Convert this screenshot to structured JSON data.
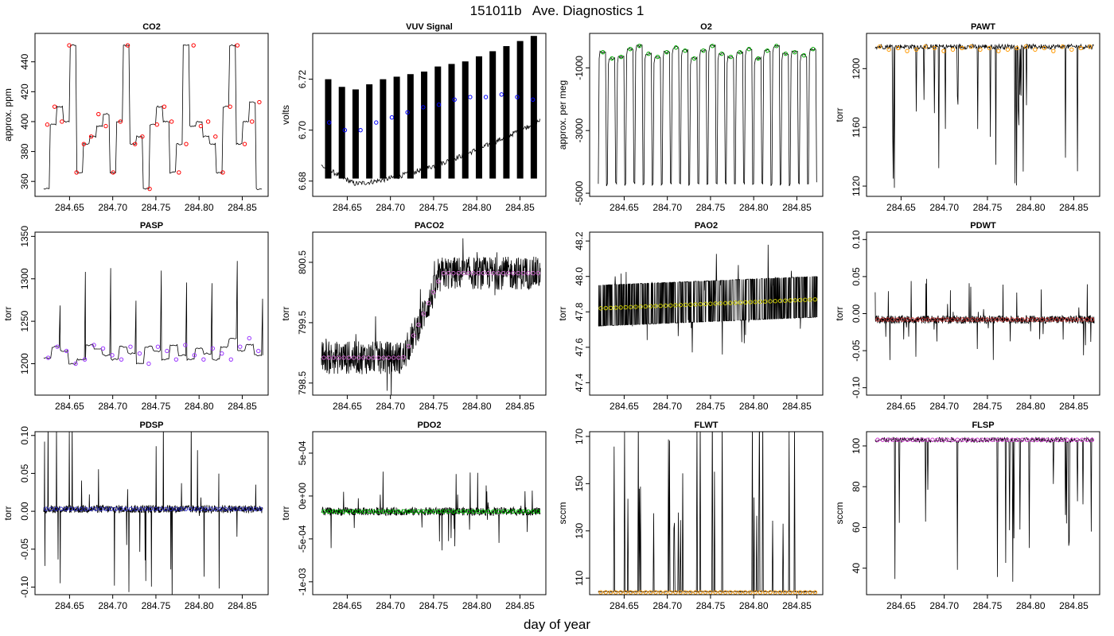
{
  "figure": {
    "title": "151011b   Ave. Diagnostics 1",
    "xlabel": "day of year"
  },
  "chart_data": [
    {
      "id": "co2",
      "type": "line",
      "title": "CO2",
      "ylabel": "approx. ppm",
      "marker_color": "#ff0000",
      "xlim": [
        284.61,
        284.88
      ],
      "ylim": [
        350,
        459
      ],
      "xticks": [
        {
          "v": 284.65,
          "t": "284.65"
        },
        {
          "v": 284.7,
          "t": "284.70"
        },
        {
          "v": 284.75,
          "t": "284.75"
        },
        {
          "v": 284.8,
          "t": "284.80"
        },
        {
          "v": 284.85,
          "t": "284.85"
        }
      ],
      "yticks": [
        {
          "v": 360,
          "t": "360"
        },
        {
          "v": 380,
          "t": "380"
        },
        {
          "v": 400,
          "t": "400"
        },
        {
          "v": 420,
          "t": "420"
        },
        {
          "v": 440,
          "t": "440"
        }
      ],
      "levels": [
        355,
        398,
        410,
        400,
        451,
        366,
        385,
        390,
        397,
        405,
        366,
        400,
        451,
        385,
        390,
        355,
        398,
        410,
        400,
        366,
        385,
        451,
        397,
        400,
        390,
        385,
        366,
        410,
        451,
        385,
        400,
        413,
        355
      ],
      "points": [
        398,
        410,
        400,
        451,
        366,
        385,
        390,
        405,
        397,
        366,
        400,
        451,
        385,
        390,
        355,
        398,
        410,
        400,
        366,
        385,
        451,
        397,
        400,
        390,
        366,
        410,
        451,
        385,
        400,
        413
      ]
    },
    {
      "id": "vuv",
      "type": "line",
      "title": "VUV Signal",
      "ylabel": "volts",
      "marker_color": "#0000ff",
      "xlim": [
        284.61,
        284.88
      ],
      "ylim": [
        6.674,
        6.738
      ],
      "xticks": [
        {
          "v": 284.65,
          "t": "284.65"
        },
        {
          "v": 284.7,
          "t": "284.70"
        },
        {
          "v": 284.75,
          "t": "284.75"
        },
        {
          "v": 284.8,
          "t": "284.80"
        },
        {
          "v": 284.85,
          "t": "284.85"
        }
      ],
      "yticks": [
        {
          "v": 6.68,
          "t": "6.68"
        },
        {
          "v": 6.7,
          "t": "6.70"
        },
        {
          "v": 6.72,
          "t": "6.72"
        }
      ],
      "base_start": 6.686,
      "base_min": 6.679,
      "base_end": 6.704,
      "spikes": [
        6.72,
        6.717,
        6.716,
        6.718,
        6.72,
        6.721,
        6.722,
        6.723,
        6.725,
        6.726,
        6.727,
        6.729,
        6.731,
        6.733,
        6.735,
        6.737
      ],
      "points": [
        6.703,
        6.7,
        6.7,
        6.703,
        6.705,
        6.707,
        6.709,
        6.71,
        6.712,
        6.713,
        6.713,
        6.714,
        6.713,
        6.712
      ]
    },
    {
      "id": "o2",
      "type": "line",
      "title": "O2",
      "ylabel": "approx. per meg",
      "marker_color": "#00aa00",
      "xlim": [
        284.61,
        284.88
      ],
      "ylim": [
        -5100,
        100
      ],
      "xticks": [
        {
          "v": 284.65,
          "t": "284.65"
        },
        {
          "v": 284.7,
          "t": "284.70"
        },
        {
          "v": 284.75,
          "t": "284.75"
        },
        {
          "v": 284.8,
          "t": "284.80"
        },
        {
          "v": 284.85,
          "t": "284.85"
        }
      ],
      "yticks": [
        {
          "v": -5000,
          "t": "-5000"
        },
        {
          "v": -3000,
          "t": "-3000"
        },
        {
          "v": -1000,
          "t": "-1000"
        }
      ],
      "levels": [
        -500,
        -700,
        -650,
        -400,
        -300,
        -550,
        -650,
        -500,
        -350,
        -450,
        -700,
        -450,
        -300,
        -550,
        -650,
        -500,
        -400,
        -700,
        -450,
        -300,
        -550,
        -500,
        -600,
        -400
      ],
      "low": -4700,
      "points": [
        -500,
        -700,
        -650,
        -400,
        -300,
        -550,
        -650,
        -500,
        -350,
        -450,
        -700,
        -450,
        -300,
        -550,
        -650,
        -500,
        -400,
        -700,
        -450,
        -300,
        -550,
        -500,
        -600,
        -400
      ]
    },
    {
      "id": "pawt",
      "type": "line",
      "title": "PAWT",
      "ylabel": "torr",
      "marker_color": "#ff9900",
      "xlim": [
        284.61,
        284.88
      ],
      "ylim": [
        1113,
        1224
      ],
      "xticks": [
        {
          "v": 284.65,
          "t": "284.65"
        },
        {
          "v": 284.7,
          "t": "284.70"
        },
        {
          "v": 284.75,
          "t": "284.75"
        },
        {
          "v": 284.8,
          "t": "284.80"
        },
        {
          "v": 284.85,
          "t": "284.85"
        }
      ],
      "yticks": [
        {
          "v": 1120,
          "t": "1120"
        },
        {
          "v": 1160,
          "t": "1160"
        },
        {
          "v": 1200,
          "t": "1200"
        }
      ],
      "base": 1215,
      "low": 1118,
      "points": [
        1215,
        1213,
        1214,
        1212,
        1213,
        1215,
        1214,
        1212,
        1213,
        1214,
        1215,
        1213,
        1214,
        1212,
        1213,
        1214,
        1215,
        1213,
        1214,
        1212,
        1215,
        1213,
        1214,
        1215
      ]
    },
    {
      "id": "pasp",
      "type": "line",
      "title": "PASP",
      "ylabel": "torr",
      "marker_color": "#9933ff",
      "xlim": [
        284.61,
        284.88
      ],
      "ylim": [
        1163,
        1355
      ],
      "xticks": [
        {
          "v": 284.65,
          "t": "284.65"
        },
        {
          "v": 284.7,
          "t": "284.70"
        },
        {
          "v": 284.75,
          "t": "284.75"
        },
        {
          "v": 284.8,
          "t": "284.80"
        },
        {
          "v": 284.85,
          "t": "284.85"
        }
      ],
      "yticks": [
        {
          "v": 1200,
          "t": "1200"
        },
        {
          "v": 1250,
          "t": "1250"
        },
        {
          "v": 1300,
          "t": "1300"
        },
        {
          "v": 1350,
          "t": "1350"
        }
      ],
      "levels": [
        1207,
        1220,
        1215,
        1200,
        1205,
        1222,
        1218,
        1210,
        1205,
        1220,
        1212,
        1200,
        1220,
        1215,
        1205,
        1222,
        1210,
        1205,
        1218,
        1212,
        1205,
        1220,
        1230,
        1215,
        1222,
        1210
      ],
      "points": [
        1207,
        1220,
        1215,
        1200,
        1205,
        1222,
        1218,
        1210,
        1205,
        1220,
        1212,
        1200,
        1220,
        1215,
        1205,
        1222,
        1210,
        1205,
        1218,
        1212,
        1205,
        1220,
        1230,
        1215
      ]
    },
    {
      "id": "paco2",
      "type": "line",
      "title": "PACO2",
      "ylabel": "torr",
      "marker_color": "#cc66cc",
      "xlim": [
        284.61,
        284.88
      ],
      "ylim": [
        798.3,
        801.0
      ],
      "xticks": [
        {
          "v": 284.65,
          "t": "284.65"
        },
        {
          "v": 284.7,
          "t": "284.70"
        },
        {
          "v": 284.75,
          "t": "284.75"
        },
        {
          "v": 284.8,
          "t": "284.80"
        },
        {
          "v": 284.85,
          "t": "284.85"
        }
      ],
      "yticks": [
        {
          "v": 798.5,
          "t": "798.5"
        },
        {
          "v": 799.5,
          "t": "799.5"
        },
        {
          "v": 800.5,
          "t": "800.5"
        }
      ],
      "low_level": 798.92,
      "high_level": 800.32,
      "step_start": 284.715,
      "step_end": 284.76
    },
    {
      "id": "pao2",
      "type": "line",
      "title": "PAO2",
      "ylabel": "torr",
      "marker_color": "#cccc00",
      "xlim": [
        284.61,
        284.88
      ],
      "ylim": [
        47.33,
        48.25
      ],
      "xticks": [
        {
          "v": 284.65,
          "t": "284.65"
        },
        {
          "v": 284.7,
          "t": "284.70"
        },
        {
          "v": 284.75,
          "t": "284.75"
        },
        {
          "v": 284.8,
          "t": "284.80"
        },
        {
          "v": 284.85,
          "t": "284.85"
        }
      ],
      "yticks": [
        {
          "v": 47.4,
          "t": "47.4"
        },
        {
          "v": 47.6,
          "t": "47.6"
        },
        {
          "v": 47.8,
          "t": "47.8"
        },
        {
          "v": 48.0,
          "t": "48.0"
        },
        {
          "v": 48.2,
          "t": "48.2"
        }
      ],
      "level_start": 47.82,
      "level_end": 47.87
    },
    {
      "id": "pdwt",
      "type": "line",
      "title": "PDWT",
      "ylabel": "torr",
      "marker_color": "#cc3333",
      "xlim": [
        284.61,
        284.88
      ],
      "ylim": [
        -0.11,
        0.11
      ],
      "xticks": [
        {
          "v": 284.65,
          "t": "284.65"
        },
        {
          "v": 284.7,
          "t": "284.70"
        },
        {
          "v": 284.75,
          "t": "284.75"
        },
        {
          "v": 284.8,
          "t": "284.80"
        },
        {
          "v": 284.85,
          "t": "284.85"
        }
      ],
      "yticks": [
        {
          "v": -0.1,
          "t": "-0.10"
        },
        {
          "v": -0.05,
          "t": "-0.05"
        },
        {
          "v": 0.0,
          "t": "0.00"
        },
        {
          "v": 0.05,
          "t": "0.05"
        },
        {
          "v": 0.1,
          "t": "0.10"
        }
      ],
      "level": -0.008
    },
    {
      "id": "pdsp",
      "type": "line",
      "title": "PDSP",
      "ylabel": "torr",
      "marker_color": "#3333cc",
      "xlim": [
        284.61,
        284.88
      ],
      "ylim": [
        -0.11,
        0.105
      ],
      "xticks": [
        {
          "v": 284.65,
          "t": "284.65"
        },
        {
          "v": 284.7,
          "t": "284.70"
        },
        {
          "v": 284.75,
          "t": "284.75"
        },
        {
          "v": 284.8,
          "t": "284.80"
        },
        {
          "v": 284.85,
          "t": "284.85"
        }
      ],
      "yticks": [
        {
          "v": -0.1,
          "t": "-0.10"
        },
        {
          "v": -0.05,
          "t": "-0.05"
        },
        {
          "v": 0.0,
          "t": "0.00"
        },
        {
          "v": 0.05,
          "t": "0.05"
        },
        {
          "v": 0.1,
          "t": "0.10"
        }
      ],
      "level": 0.003
    },
    {
      "id": "pdo2",
      "type": "line",
      "title": "PDO2",
      "ylabel": "torr",
      "marker_color": "#00cc00",
      "xlim": [
        284.61,
        284.88
      ],
      "ylim": [
        -0.00115,
        0.00075
      ],
      "xticks": [
        {
          "v": 284.65,
          "t": "284.65"
        },
        {
          "v": 284.7,
          "t": "284.70"
        },
        {
          "v": 284.75,
          "t": "284.75"
        },
        {
          "v": 284.8,
          "t": "284.80"
        },
        {
          "v": 284.85,
          "t": "284.85"
        }
      ],
      "yticks": [
        {
          "v": -0.001,
          "t": "-1e-03"
        },
        {
          "v": -0.0005,
          "t": "-5e-04"
        },
        {
          "v": 0,
          "t": "0e+00"
        },
        {
          "v": 0.0005,
          "t": "5e-04"
        }
      ],
      "level": -0.00018
    },
    {
      "id": "flwt",
      "type": "line",
      "title": "FLWT",
      "ylabel": "sccm",
      "marker_color": "#ff9900",
      "xlim": [
        284.61,
        284.88
      ],
      "ylim": [
        103,
        172
      ],
      "xticks": [
        {
          "v": 284.65,
          "t": "284.65"
        },
        {
          "v": 284.7,
          "t": "284.70"
        },
        {
          "v": 284.75,
          "t": "284.75"
        },
        {
          "v": 284.8,
          "t": "284.80"
        },
        {
          "v": 284.85,
          "t": "284.85"
        }
      ],
      "yticks": [
        {
          "v": 110,
          "t": "110"
        },
        {
          "v": 130,
          "t": "130"
        },
        {
          "v": 150,
          "t": "150"
        },
        {
          "v": 170,
          "t": "170"
        }
      ],
      "base": 104,
      "high": 165
    },
    {
      "id": "flsp",
      "type": "line",
      "title": "FLSP",
      "ylabel": "sccm",
      "marker_color": "#cc33cc",
      "xlim": [
        284.61,
        284.88
      ],
      "ylim": [
        27,
        107
      ],
      "xticks": [
        {
          "v": 284.65,
          "t": "284.65"
        },
        {
          "v": 284.7,
          "t": "284.70"
        },
        {
          "v": 284.75,
          "t": "284.75"
        },
        {
          "v": 284.8,
          "t": "284.80"
        },
        {
          "v": 284.85,
          "t": "284.85"
        }
      ],
      "yticks": [
        {
          "v": 40,
          "t": "40"
        },
        {
          "v": 60,
          "t": "60"
        },
        {
          "v": 80,
          "t": "80"
        },
        {
          "v": 100,
          "t": "100"
        }
      ],
      "base": 103,
      "low": 32
    }
  ]
}
